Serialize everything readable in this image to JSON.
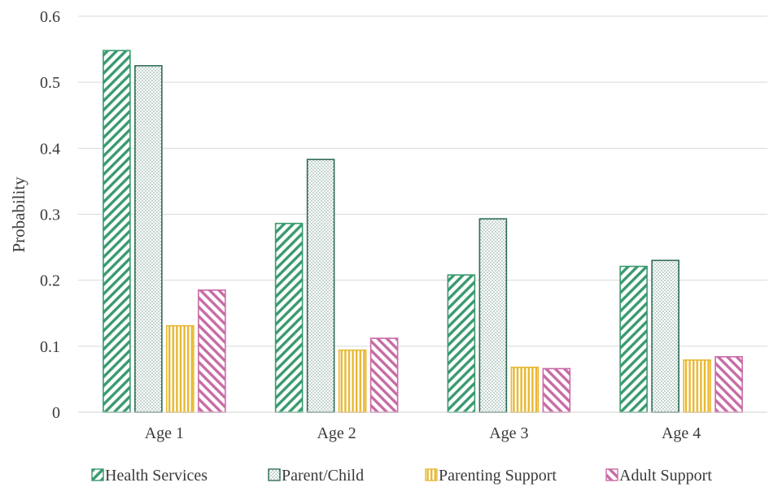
{
  "chart_data": {
    "type": "bar",
    "title": "",
    "xlabel": "",
    "ylabel": "Probability",
    "ylim": [
      0,
      0.6
    ],
    "yticks": [
      0,
      0.1,
      0.2,
      0.3,
      0.4,
      0.5,
      0.6
    ],
    "ytick_labels": [
      "0",
      "0.1",
      "0.2",
      "0.3",
      "0.4",
      "0.5",
      "0.6"
    ],
    "grid": "horizontal",
    "legend": "bottom",
    "categories": [
      "Age 1",
      "Age 2",
      "Age 3",
      "Age 4"
    ],
    "series": [
      {
        "name": "Health Services",
        "values": [
          0.548,
          0.286,
          0.208,
          0.221
        ],
        "color": "#3a9a6e",
        "pattern": "wide-downward-diagonal"
      },
      {
        "name": "Parent/Child",
        "values": [
          0.525,
          0.383,
          0.293,
          0.23
        ],
        "color": "#2f6b55",
        "pattern": "dotted"
      },
      {
        "name": "Parenting Support",
        "values": [
          0.131,
          0.094,
          0.068,
          0.079
        ],
        "color": "#e8b830",
        "pattern": "vertical"
      },
      {
        "name": "Adult Support",
        "values": [
          0.185,
          0.112,
          0.066,
          0.084
        ],
        "color": "#c86ba6",
        "pattern": "wide-upward-diagonal"
      }
    ]
  }
}
